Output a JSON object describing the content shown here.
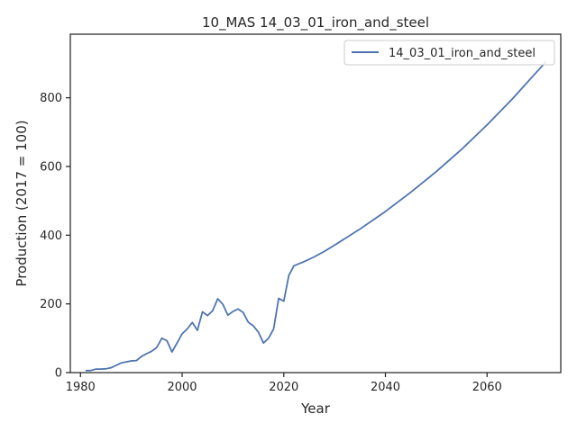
{
  "chart_data": {
    "type": "line",
    "title": "10_MAS 14_03_01_iron_and_steel",
    "xlabel": "Year",
    "ylabel": "Production (2017 = 100)",
    "xlim": [
      1978,
      2074.5
    ],
    "ylim": [
      0,
      985
    ],
    "xticks": [
      1980,
      2000,
      2020,
      2040,
      2060
    ],
    "yticks": [
      0,
      200,
      400,
      600,
      800
    ],
    "grid": false,
    "legend_position": "top-right",
    "series": [
      {
        "name": "14_03_01_iron_and_steel",
        "color": "#4c72b0",
        "points": [
          [
            1981,
            6
          ],
          [
            1982,
            6
          ],
          [
            1983,
            10
          ],
          [
            1984,
            10
          ],
          [
            1985,
            11
          ],
          [
            1986,
            14
          ],
          [
            1987,
            21
          ],
          [
            1988,
            28
          ],
          [
            1989,
            31
          ],
          [
            1990,
            34
          ],
          [
            1991,
            35
          ],
          [
            1992,
            47
          ],
          [
            1993,
            55
          ],
          [
            1994,
            62
          ],
          [
            1995,
            73
          ],
          [
            1996,
            100
          ],
          [
            1997,
            93
          ],
          [
            1998,
            60
          ],
          [
            1999,
            86
          ],
          [
            2000,
            113
          ],
          [
            2001,
            127
          ],
          [
            2002,
            146
          ],
          [
            2003,
            123
          ],
          [
            2004,
            177
          ],
          [
            2005,
            166
          ],
          [
            2006,
            180
          ],
          [
            2007,
            215
          ],
          [
            2008,
            199
          ],
          [
            2009,
            167
          ],
          [
            2010,
            178
          ],
          [
            2011,
            185
          ],
          [
            2012,
            175
          ],
          [
            2013,
            147
          ],
          [
            2014,
            136
          ],
          [
            2015,
            118
          ],
          [
            2016,
            86
          ],
          [
            2017,
            100
          ],
          [
            2018,
            127
          ],
          [
            2019,
            216
          ],
          [
            2020,
            208
          ],
          [
            2021,
            283
          ],
          [
            2022,
            311
          ],
          [
            2024,
            323
          ],
          [
            2026,
            337
          ],
          [
            2028,
            353
          ],
          [
            2030,
            371
          ],
          [
            2035,
            418
          ],
          [
            2040,
            469
          ],
          [
            2045,
            525
          ],
          [
            2050,
            585
          ],
          [
            2055,
            650
          ],
          [
            2060,
            721
          ],
          [
            2065,
            797
          ],
          [
            2070,
            879
          ],
          [
            2071.6,
            905
          ]
        ]
      }
    ]
  },
  "colors": {
    "line": "#4c72b0",
    "axes": "#262626",
    "background": "#ffffff",
    "legend_border": "#cccccc"
  }
}
